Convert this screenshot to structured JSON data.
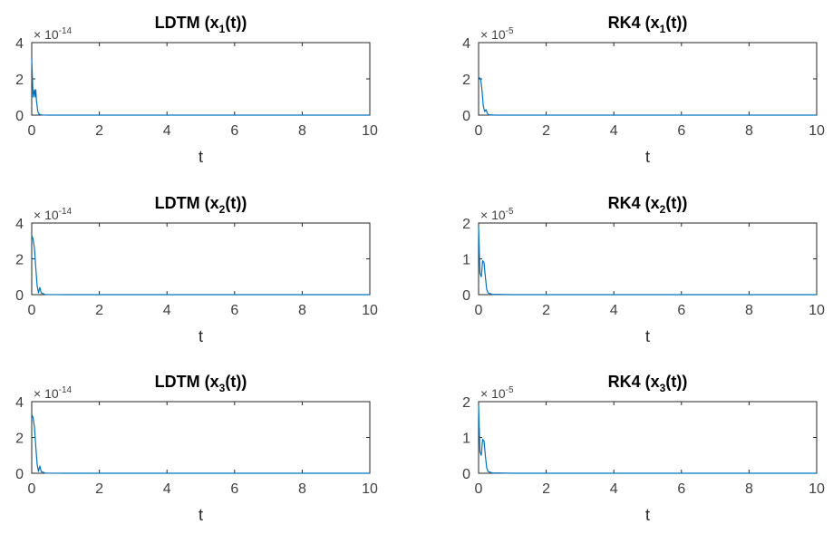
{
  "chart_data": [
    {
      "type": "line",
      "title": {
        "prefix": "LDTM (x",
        "sub": "1",
        "suffix": "(t))"
      },
      "xlabel": "t",
      "xlim": [
        0,
        10
      ],
      "xticks": [
        0,
        2,
        4,
        6,
        8,
        10
      ],
      "ylim": [
        0,
        4
      ],
      "yticks": [
        0,
        2,
        4
      ],
      "exponent": {
        "base": "× 10",
        "power": "-14"
      },
      "color": "#0072BD",
      "series": [
        {
          "x": [
            0,
            0.04,
            0.08,
            0.1,
            0.12,
            0.14,
            0.18,
            0.22,
            0.3,
            0.5,
            1,
            2,
            5,
            10
          ],
          "y": [
            3.1,
            1.0,
            1.4,
            1.0,
            1.4,
            0.8,
            0.2,
            0.05,
            0.01,
            0,
            0,
            0,
            0,
            0
          ]
        }
      ]
    },
    {
      "type": "line",
      "title": {
        "prefix": "RK4 (x",
        "sub": "1",
        "suffix": "(t))"
      },
      "xlabel": "t",
      "xlim": [
        0,
        10
      ],
      "xticks": [
        0,
        2,
        4,
        6,
        8,
        10
      ],
      "ylim": [
        0,
        4
      ],
      "yticks": [
        0,
        2,
        4
      ],
      "exponent": {
        "base": "× 10",
        "power": "-5"
      },
      "color": "#0072BD",
      "series": [
        {
          "x": [
            0,
            0.06,
            0.1,
            0.14,
            0.18,
            0.22,
            0.26,
            0.3,
            0.5,
            1,
            2,
            5,
            10
          ],
          "y": [
            2.1,
            2.0,
            1.4,
            0.5,
            0.2,
            0.3,
            0.1,
            0.02,
            0,
            0,
            0,
            0,
            0
          ]
        }
      ]
    },
    {
      "type": "line",
      "title": {
        "prefix": "LDTM (x",
        "sub": "2",
        "suffix": "(t))"
      },
      "xlabel": "t",
      "xlim": [
        0,
        10
      ],
      "xticks": [
        0,
        2,
        4,
        6,
        8,
        10
      ],
      "ylim": [
        0,
        4
      ],
      "yticks": [
        0,
        2,
        4
      ],
      "exponent": {
        "base": "× 10",
        "power": "-14"
      },
      "color": "#0072BD",
      "series": [
        {
          "x": [
            0,
            0.04,
            0.08,
            0.12,
            0.16,
            0.2,
            0.24,
            0.28,
            0.4,
            1,
            2,
            5,
            10
          ],
          "y": [
            3.3,
            3.1,
            2.6,
            1.5,
            0.5,
            0.1,
            0.4,
            0.1,
            0.01,
            0,
            0,
            0,
            0
          ]
        }
      ]
    },
    {
      "type": "line",
      "title": {
        "prefix": "RK4 (x",
        "sub": "2",
        "suffix": "(t))"
      },
      "xlabel": "t",
      "xlim": [
        0,
        10
      ],
      "xticks": [
        0,
        2,
        4,
        6,
        8,
        10
      ],
      "ylim": [
        0,
        2
      ],
      "yticks": [
        0,
        1,
        2
      ],
      "exponent": {
        "base": "× 10",
        "power": "-5"
      },
      "color": "#0072BD",
      "series": [
        {
          "x": [
            0,
            0.04,
            0.08,
            0.12,
            0.16,
            0.2,
            0.24,
            0.28,
            0.4,
            1,
            2,
            5,
            10
          ],
          "y": [
            1.9,
            0.6,
            0.5,
            0.95,
            0.9,
            0.5,
            0.15,
            0.05,
            0.01,
            0,
            0,
            0,
            0
          ]
        }
      ]
    },
    {
      "type": "line",
      "title": {
        "prefix": "LDTM (x",
        "sub": "3",
        "suffix": "(t))"
      },
      "xlabel": "t",
      "xlim": [
        0,
        10
      ],
      "xticks": [
        0,
        2,
        4,
        6,
        8,
        10
      ],
      "ylim": [
        0,
        4
      ],
      "yticks": [
        0,
        2,
        4
      ],
      "exponent": {
        "base": "× 10",
        "power": "-14"
      },
      "color": "#0072BD",
      "series": [
        {
          "x": [
            0,
            0.04,
            0.08,
            0.12,
            0.16,
            0.2,
            0.24,
            0.28,
            0.4,
            1,
            2,
            5,
            10
          ],
          "y": [
            3.3,
            3.1,
            2.6,
            1.5,
            0.5,
            0.1,
            0.4,
            0.1,
            0.01,
            0,
            0,
            0,
            0
          ]
        }
      ]
    },
    {
      "type": "line",
      "title": {
        "prefix": "RK4 (x",
        "sub": "3",
        "suffix": "(t))"
      },
      "xlabel": "t",
      "xlim": [
        0,
        10
      ],
      "xticks": [
        0,
        2,
        4,
        6,
        8,
        10
      ],
      "ylim": [
        0,
        2
      ],
      "yticks": [
        0,
        1,
        2
      ],
      "exponent": {
        "base": "× 10",
        "power": "-5"
      },
      "color": "#0072BD",
      "series": [
        {
          "x": [
            0,
            0.04,
            0.08,
            0.12,
            0.16,
            0.2,
            0.24,
            0.28,
            0.4,
            1,
            2,
            5,
            10
          ],
          "y": [
            1.9,
            0.6,
            0.5,
            0.95,
            0.9,
            0.5,
            0.15,
            0.05,
            0.01,
            0,
            0,
            0,
            0
          ]
        }
      ]
    }
  ]
}
